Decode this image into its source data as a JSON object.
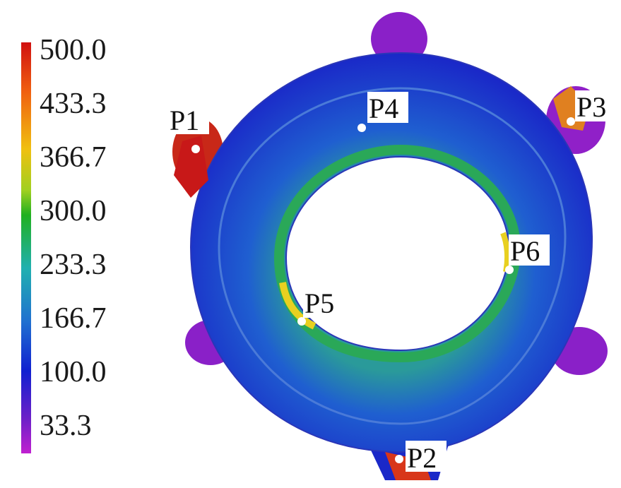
{
  "legend": {
    "values": [
      "500.0",
      "433.3",
      "366.7",
      "300.0",
      "233.3",
      "166.7",
      "100.0",
      "33.3"
    ],
    "colors": [
      "#d01010",
      "#f06010",
      "#f0c010",
      "#20b020",
      "#20b0b0",
      "#2070d0",
      "#1020d0",
      "#9010c0"
    ]
  },
  "points": [
    {
      "label": "P1"
    },
    {
      "label": "P2"
    },
    {
      "label": "P3"
    },
    {
      "label": "P4"
    },
    {
      "label": "P5"
    },
    {
      "label": "P6"
    }
  ]
}
